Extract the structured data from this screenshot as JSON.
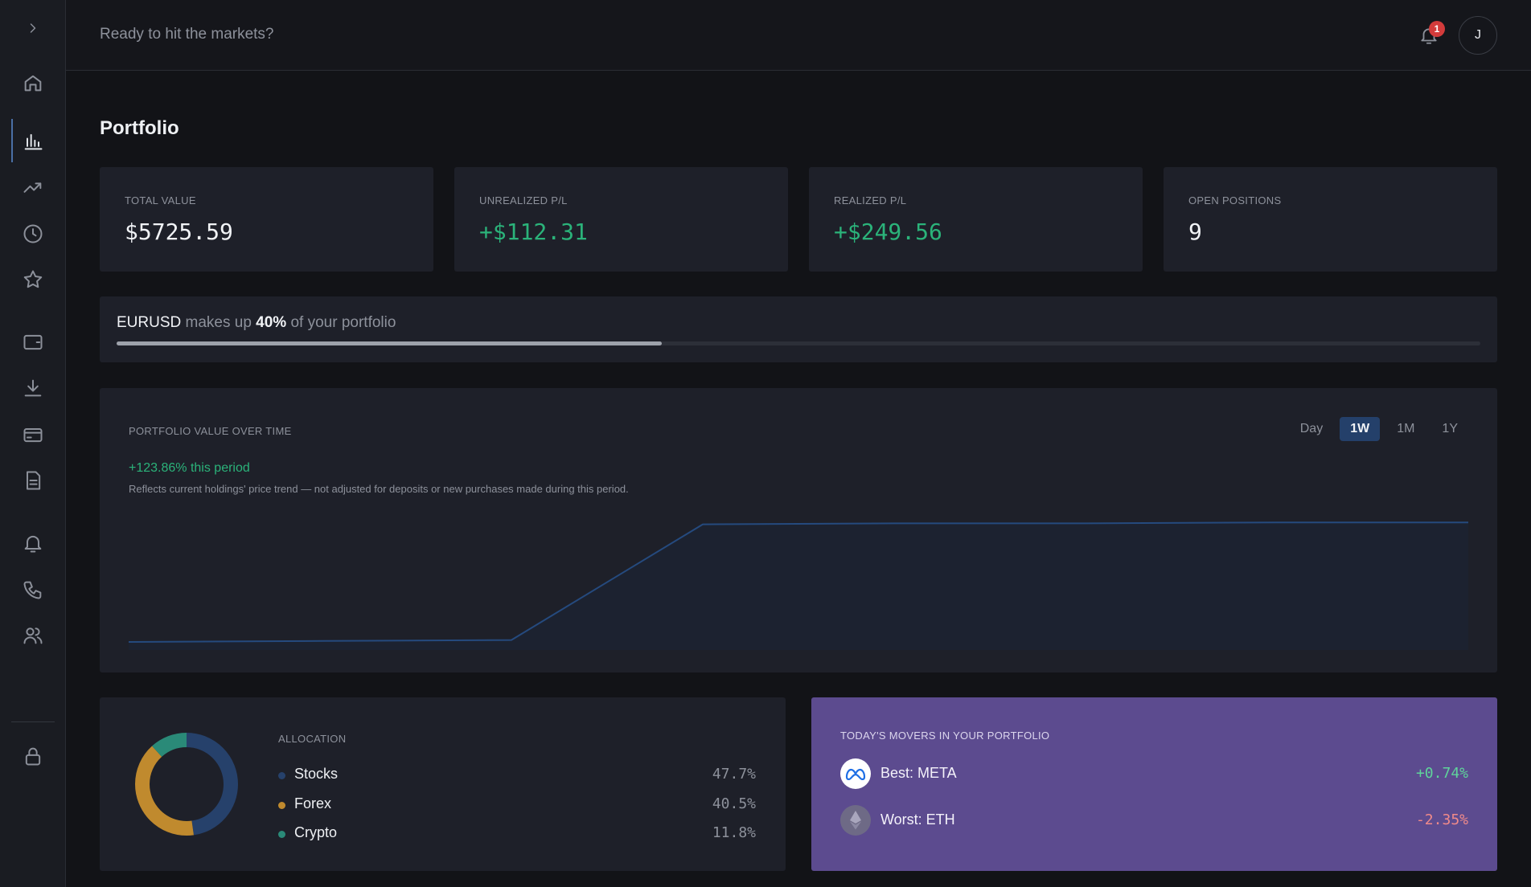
{
  "header": {
    "greeting": "Ready to hit the markets?",
    "notification_count": "1",
    "avatar_initial": "J"
  },
  "sidebar": {
    "items": [
      {
        "icon": "chevron-right-icon"
      },
      {
        "icon": "home-icon"
      },
      {
        "icon": "bar-chart-icon",
        "active": true
      },
      {
        "icon": "trending-up-icon"
      },
      {
        "icon": "clock-icon"
      },
      {
        "icon": "star-icon"
      },
      {
        "icon": "wallet-icon"
      },
      {
        "icon": "download-icon"
      },
      {
        "icon": "credit-card-icon"
      },
      {
        "icon": "document-icon"
      },
      {
        "icon": "bell-icon"
      },
      {
        "icon": "phone-icon"
      },
      {
        "icon": "users-icon"
      },
      {
        "icon": "lock-icon"
      }
    ]
  },
  "page": {
    "title": "Portfolio"
  },
  "stats": [
    {
      "label": "TOTAL VALUE",
      "value": "$5725.59"
    },
    {
      "label": "UNREALIZED P/L",
      "value": "+$112.31"
    },
    {
      "label": "REALIZED P/L",
      "value": "+$249.56"
    },
    {
      "label": "OPEN POSITIONS",
      "value": "9"
    }
  ],
  "concentration": {
    "symbol": "EURUSD",
    "text_middle": " makes up ",
    "percent_text": "40%",
    "text_end": " of your portfolio",
    "fraction": 0.4
  },
  "value_chart": {
    "label": "PORTFOLIO VALUE OVER TIME",
    "change": "+123.86% this period",
    "note": "Reflects current holdings' price trend — not adjusted for deposits or new purchases made during this period.",
    "ranges": [
      "Day",
      "1W",
      "1M",
      "1Y"
    ],
    "active_range": "1W"
  },
  "chart_data": {
    "type": "area",
    "x": [
      0,
      1,
      2,
      3,
      4,
      5,
      6,
      7
    ],
    "values": [
      100,
      101,
      102,
      222,
      223,
      223,
      224,
      224
    ],
    "ylim": [
      95,
      240
    ],
    "grid": false,
    "title": "",
    "xlabel": "",
    "ylabel": ""
  },
  "allocation": {
    "label": "ALLOCATION",
    "items": [
      {
        "name": "Stocks",
        "pct": "47.7%",
        "value": 47.7,
        "color": "#26416b"
      },
      {
        "name": "Forex",
        "pct": "40.5%",
        "value": 40.5,
        "color": "#c08a2e"
      },
      {
        "name": "Crypto",
        "pct": "11.8%",
        "value": 11.8,
        "color": "#2a8a78"
      }
    ]
  },
  "movers": {
    "label": "TODAY'S MOVERS IN YOUR PORTFOLIO",
    "best": {
      "text": "Best: META",
      "pct": "+0.74%",
      "icon": "meta-logo-icon"
    },
    "worst": {
      "text": "Worst: ETH",
      "pct": "-2.35%",
      "icon": "ethereum-logo-icon"
    }
  }
}
